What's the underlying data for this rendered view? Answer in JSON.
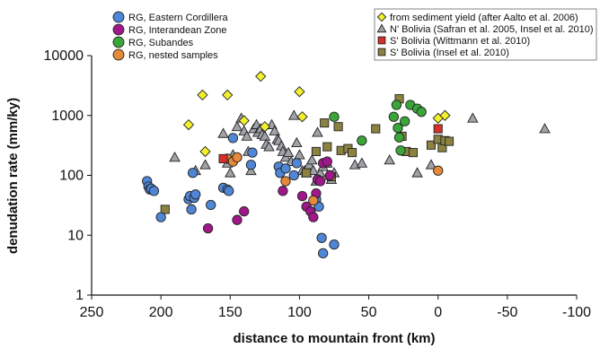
{
  "chart_data": {
    "type": "scatter",
    "xlabel": "distance to mountain front (km)",
    "ylabel": "denudation rate (mm/ky)",
    "x_reversed": true,
    "xlim": [
      250,
      -100
    ],
    "ylim": [
      1,
      10000
    ],
    "y_scale": "log",
    "x_ticks": [
      "250",
      "200",
      "150",
      "100",
      "50",
      "0",
      "-50",
      "-100"
    ],
    "x_tick_values": [
      250,
      200,
      150,
      100,
      50,
      0,
      -50,
      -100
    ],
    "y_ticks": [
      "1",
      "10",
      "100",
      "1000",
      "10000"
    ],
    "y_tick_values": [
      1,
      10,
      100,
      1000,
      10000
    ],
    "grid": false,
    "legend_left": [
      {
        "label": "RG, Eastern Cordillera",
        "series": "eastern_cordillera"
      },
      {
        "label": "RG, Interandean Zone",
        "series": "interandean"
      },
      {
        "label": "RG, Subandes",
        "series": "subandes"
      },
      {
        "label": "RG, nested samples",
        "series": "nested"
      }
    ],
    "legend_right": [
      {
        "label": "from sediment yield (after Aalto et al. 2006)",
        "series": "sediment_yield"
      },
      {
        "label": "N' Bolivia (Safran et al. 2005, Insel et al. 2010)",
        "series": "n_bolivia"
      },
      {
        "label": "S' Bolivia (Wittmann et al. 2010)",
        "series": "s_bolivia_wittmann"
      },
      {
        "label": "S' Bolivia (Insel et al. 2010)",
        "series": "s_bolivia_insel"
      }
    ],
    "series": [
      {
        "key": "eastern_cordillera",
        "name": "RG, Eastern Cordillera",
        "marker": "circle",
        "color": "#4f86d6",
        "points": [
          [
            210,
            80
          ],
          [
            209,
            65
          ],
          [
            208,
            58
          ],
          [
            207,
            60
          ],
          [
            205,
            55
          ],
          [
            200,
            20
          ],
          [
            180,
            40
          ],
          [
            179,
            45
          ],
          [
            178,
            27
          ],
          [
            176,
            42
          ],
          [
            177,
            110
          ],
          [
            175,
            48
          ],
          [
            164,
            32
          ],
          [
            155,
            62
          ],
          [
            152,
            58
          ],
          [
            151,
            55
          ],
          [
            148,
            420
          ],
          [
            135,
            150
          ],
          [
            134,
            240
          ],
          [
            115,
            140
          ],
          [
            114,
            110
          ],
          [
            110,
            130
          ],
          [
            104,
            100
          ],
          [
            102,
            160
          ],
          [
            88,
            40
          ],
          [
            86,
            30
          ],
          [
            84,
            9
          ],
          [
            83,
            5
          ],
          [
            75,
            7
          ]
        ]
      },
      {
        "key": "interandean",
        "name": "RG, Interandean Zone",
        "marker": "circle",
        "color": "#a0178a",
        "points": [
          [
            166,
            13
          ],
          [
            145,
            18
          ],
          [
            140,
            25
          ],
          [
            112,
            55
          ],
          [
            98,
            45
          ],
          [
            95,
            30
          ],
          [
            92,
            25
          ],
          [
            90,
            20
          ],
          [
            88,
            50
          ],
          [
            87,
            85
          ],
          [
            85,
            80
          ],
          [
            83,
            160
          ],
          [
            80,
            170
          ],
          [
            78,
            100
          ]
        ]
      },
      {
        "key": "subandes",
        "name": "RG, Subandes",
        "marker": "circle",
        "color": "#3aa63a",
        "points": [
          [
            75,
            950
          ],
          [
            55,
            380
          ],
          [
            32,
            950
          ],
          [
            30,
            1500
          ],
          [
            29,
            620
          ],
          [
            28,
            430
          ],
          [
            27,
            260
          ],
          [
            24,
            800
          ],
          [
            20,
            1500
          ],
          [
            15,
            1300
          ],
          [
            12,
            1150
          ]
        ]
      },
      {
        "key": "nested",
        "name": "RG, nested samples",
        "marker": "circle",
        "color": "#e5893a",
        "points": [
          [
            152,
            190
          ],
          [
            148,
            170
          ],
          [
            145,
            200
          ],
          [
            110,
            80
          ],
          [
            90,
            38
          ],
          [
            0,
            120
          ]
        ]
      },
      {
        "key": "sediment_yield",
        "name": "from sediment yield (after Aalto et al. 2006)",
        "marker": "diamond",
        "color": "#f2ef2c",
        "points": [
          [
            180,
            700
          ],
          [
            170,
            2200
          ],
          [
            168,
            250
          ],
          [
            152,
            2200
          ],
          [
            140,
            820
          ],
          [
            128,
            4500
          ],
          [
            125,
            650
          ],
          [
            100,
            2500
          ],
          [
            98,
            950
          ],
          [
            0,
            900
          ],
          [
            -5,
            1000
          ]
        ]
      },
      {
        "key": "n_bolivia",
        "name": "N' Bolivia (Safran et al. 2005, Insel et al. 2010)",
        "marker": "triangle",
        "color": "#a0a2a8",
        "points": [
          [
            190,
            200
          ],
          [
            175,
            120
          ],
          [
            168,
            150
          ],
          [
            155,
            500
          ],
          [
            152,
            160
          ],
          [
            150,
            110
          ],
          [
            148,
            220
          ],
          [
            145,
            650
          ],
          [
            142,
            900
          ],
          [
            140,
            550
          ],
          [
            138,
            450
          ],
          [
            137,
            250
          ],
          [
            135,
            120
          ],
          [
            133,
            600
          ],
          [
            131,
            700
          ],
          [
            130,
            520
          ],
          [
            128,
            600
          ],
          [
            127,
            480
          ],
          [
            125,
            450
          ],
          [
            124,
            330
          ],
          [
            122,
            300
          ],
          [
            120,
            700
          ],
          [
            118,
            550
          ],
          [
            116,
            400
          ],
          [
            115,
            380
          ],
          [
            113,
            310
          ],
          [
            112,
            250
          ],
          [
            110,
            200
          ],
          [
            108,
            240
          ],
          [
            106,
            170
          ],
          [
            104,
            1000
          ],
          [
            102,
            350
          ],
          [
            100,
            220
          ],
          [
            98,
            120
          ],
          [
            96,
            120
          ],
          [
            95,
            110
          ],
          [
            93,
            150
          ],
          [
            91,
            180
          ],
          [
            90,
            120
          ],
          [
            88,
            80
          ],
          [
            87,
            520
          ],
          [
            85,
            110
          ],
          [
            83,
            140
          ],
          [
            81,
            160
          ],
          [
            80,
            160
          ],
          [
            78,
            100
          ],
          [
            77,
            85
          ],
          [
            75,
            110
          ],
          [
            60,
            150
          ],
          [
            55,
            160
          ],
          [
            35,
            180
          ],
          [
            15,
            110
          ],
          [
            5,
            150
          ],
          [
            -25,
            900
          ],
          [
            -77,
            600
          ]
        ]
      },
      {
        "key": "s_bolivia_wittmann",
        "name": "S' Bolivia (Wittmann et al. 2010)",
        "marker": "square",
        "color": "#d6302a",
        "points": [
          [
            155,
            190
          ],
          [
            0,
            600
          ]
        ]
      },
      {
        "key": "s_bolivia_insel",
        "name": "S' Bolivia (Insel et al. 2010)",
        "marker": "square",
        "color": "#8b8240",
        "points": [
          [
            197,
            27
          ],
          [
            95,
            110
          ],
          [
            88,
            250
          ],
          [
            82,
            750
          ],
          [
            80,
            300
          ],
          [
            77,
            95
          ],
          [
            72,
            650
          ],
          [
            70,
            260
          ],
          [
            65,
            280
          ],
          [
            62,
            240
          ],
          [
            45,
            600
          ],
          [
            28,
            1900
          ],
          [
            26,
            450
          ],
          [
            23,
            250
          ],
          [
            18,
            240
          ],
          [
            5,
            320
          ],
          [
            0,
            400
          ],
          [
            -3,
            290
          ],
          [
            -5,
            380
          ],
          [
            -8,
            370
          ]
        ]
      }
    ]
  }
}
